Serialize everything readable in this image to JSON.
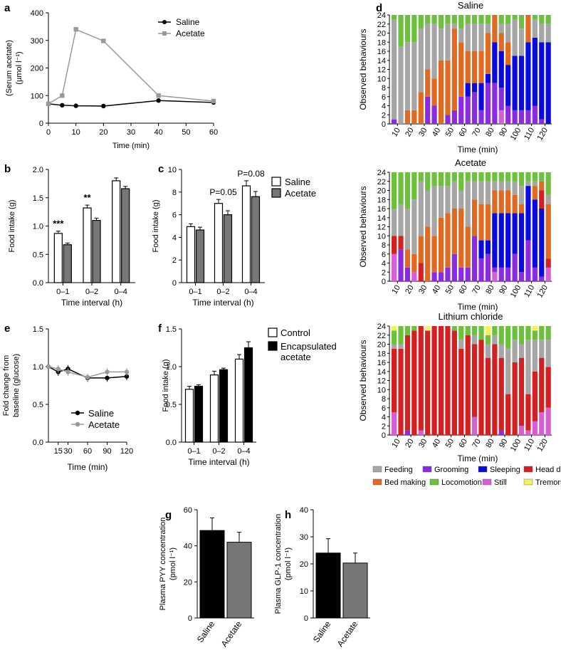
{
  "colors": {
    "saline": "#000000",
    "acetate_line": "#999999",
    "white_bar": "#ffffff",
    "acetate_bar": "#777777",
    "encapsulated_bar": "#000000",
    "feeding": "#a6a6a6",
    "grooming": "#8a2be2",
    "sleeping": "#0a0ae0",
    "head_down": "#d42020",
    "bed_making": "#e06a22",
    "locomotion": "#6cc03c",
    "still": "#d65fd6",
    "tremors": "#f2f25a"
  },
  "behaviour_legend": [
    {
      "key": "feeding",
      "label": "Feeding"
    },
    {
      "key": "grooming",
      "label": "Grooming"
    },
    {
      "key": "sleeping",
      "label": "Sleeping"
    },
    {
      "key": "head_down",
      "label": "Head down"
    },
    {
      "key": "bed_making",
      "label": "Bed making"
    },
    {
      "key": "locomotion",
      "label": "Locomotion"
    },
    {
      "key": "still",
      "label": "Still"
    },
    {
      "key": "tremors",
      "label": "Tremors"
    }
  ],
  "chart_data": [
    {
      "panel": "a",
      "type": "line",
      "xlabel": "Time (min)",
      "ylabel": [
        "(Serum acetate)",
        "(µmol l⁻¹)"
      ],
      "xlim": [
        0,
        60
      ],
      "xticks": [
        0,
        10,
        20,
        30,
        40,
        50,
        60
      ],
      "ylim": [
        0,
        400
      ],
      "yticks": [
        0,
        100,
        200,
        300,
        400
      ],
      "legend": "top-right",
      "series": [
        {
          "name": "Saline",
          "color": "#000000",
          "marker": "circle",
          "x": [
            0,
            5,
            10,
            20,
            40,
            60
          ],
          "y": [
            70,
            65,
            63,
            62,
            82,
            75
          ]
        },
        {
          "name": "Acetate",
          "color": "#999999",
          "marker": "square",
          "x": [
            0,
            5,
            10,
            20,
            40,
            60
          ],
          "y": [
            70,
            100,
            340,
            298,
            100,
            80
          ]
        }
      ]
    },
    {
      "panel": "b",
      "type": "bar",
      "xlabel": "Time interval (h)",
      "ylabel": "Food intake (g)",
      "ylim": [
        0,
        2.0
      ],
      "yticks": [
        "0.0",
        "0.5",
        "1.0",
        "1.5",
        "2.0"
      ],
      "categories": [
        "0–1",
        "0–2",
        "0–4"
      ],
      "annotations": [
        "***",
        "**",
        ""
      ],
      "series": [
        {
          "name": "Saline",
          "fill": "#ffffff",
          "values": [
            0.87,
            1.32,
            1.8
          ],
          "errors": [
            0.04,
            0.05,
            0.05
          ]
        },
        {
          "name": "Acetate",
          "fill": "#777777",
          "values": [
            0.67,
            1.1,
            1.66
          ],
          "errors": [
            0.03,
            0.04,
            0.04
          ]
        }
      ]
    },
    {
      "panel": "c",
      "type": "bar",
      "xlabel": "Time interval (h)",
      "ylabel": "Food intake (g)",
      "ylim": [
        0,
        10
      ],
      "yticks": [
        "0",
        "2",
        "4",
        "6",
        "8",
        "10"
      ],
      "categories": [
        "0–1",
        "0–2",
        "0–4"
      ],
      "annotations": [
        "",
        "P=0.05",
        "P=0.08"
      ],
      "legend": "top-right",
      "series": [
        {
          "name": "Saline",
          "fill": "#ffffff",
          "values": [
            4.95,
            7.0,
            8.55
          ],
          "errors": [
            0.25,
            0.35,
            0.45
          ]
        },
        {
          "name": "Acetate",
          "fill": "#777777",
          "values": [
            4.65,
            6.0,
            7.6
          ],
          "errors": [
            0.25,
            0.35,
            0.45
          ]
        }
      ]
    },
    {
      "panel": "e",
      "type": "line",
      "xlabel": "Time (min)",
      "ylabel": [
        "Fold change from",
        "baseline (glucose)"
      ],
      "xcategories": [
        "15",
        "30",
        "60",
        "90",
        "120"
      ],
      "ylim": [
        0,
        1.5
      ],
      "yticks": [
        "0.0",
        "0.5",
        "1.0",
        "1.5"
      ],
      "legend": "bottom-center",
      "series": [
        {
          "name": "Saline",
          "color": "#000000",
          "x": [
            0,
            15,
            30,
            60,
            90,
            120
          ],
          "y": [
            1.0,
            0.93,
            0.97,
            0.85,
            0.85,
            0.87
          ],
          "errors": [
            0,
            0.05,
            0.05,
            0.05,
            0.05,
            0.05
          ]
        },
        {
          "name": "Acetate",
          "color": "#999999",
          "x": [
            0,
            15,
            30,
            60,
            90,
            120
          ],
          "y": [
            1.0,
            0.97,
            0.93,
            0.86,
            0.93,
            0.93
          ],
          "errors": [
            0,
            0.05,
            0.05,
            0.05,
            0.05,
            0.05
          ]
        }
      ]
    },
    {
      "panel": "f",
      "type": "bar",
      "xlabel": "Time interval (h)",
      "ylabel": "Food intake (g)",
      "ylim": [
        0,
        1.5
      ],
      "yticks": [
        "0.0",
        "0.5",
        "1.0",
        "1.5"
      ],
      "categories": [
        "0–1",
        "0–2",
        "0–4"
      ],
      "legend": "top-right",
      "series": [
        {
          "name": "Control",
          "fill": "#ffffff",
          "values": [
            0.7,
            0.89,
            1.1
          ],
          "errors": [
            0.04,
            0.05,
            0.06
          ]
        },
        {
          "name": "Encapsulated acetate",
          "legend_lines": [
            "Encapsulated",
            "acetate"
          ],
          "fill": "#000000",
          "values": [
            0.74,
            0.96,
            1.25
          ],
          "errors": [
            0.02,
            0.02,
            0.08
          ]
        }
      ]
    },
    {
      "panel": "g",
      "type": "bar",
      "ylabel": [
        "Plasma PYY concentration",
        "(pmol l⁻¹)"
      ],
      "ylim": [
        0,
        60
      ],
      "yticks": [
        "0",
        "20",
        "40",
        "60"
      ],
      "categories": [
        "Saline",
        "Acetate"
      ],
      "fills": [
        "#000000",
        "#777777"
      ],
      "values": [
        48.5,
        42.0
      ],
      "errors": [
        7.0,
        5.5
      ]
    },
    {
      "panel": "h",
      "type": "bar",
      "ylabel": [
        "Plasma GLP-1 concentration",
        "(pmol l⁻¹)"
      ],
      "ylim": [
        0,
        40
      ],
      "yticks": [
        "0",
        "10",
        "20",
        "30",
        "40"
      ],
      "categories": [
        "Saline",
        "Acetate"
      ],
      "fills": [
        "#000000",
        "#777777"
      ],
      "values": [
        24.0,
        20.3
      ],
      "errors": [
        5.3,
        3.7
      ]
    },
    {
      "panel": "d",
      "type": "stacked-bar",
      "titles": [
        "Saline",
        "Acetate",
        "Lithium chloride"
      ],
      "xlabel": "Time (min)",
      "ylabel": "Observed behaviours",
      "ylim": [
        0,
        24
      ],
      "yticks": [
        "0",
        "2",
        "4",
        "6",
        "8",
        "10",
        "12",
        "14",
        "16",
        "18",
        "20",
        "22",
        "24"
      ],
      "xticks": [
        "10",
        "20",
        "30",
        "40",
        "50",
        "60",
        "70",
        "80",
        "90",
        "100",
        "110",
        "120"
      ],
      "n_bars": 24,
      "stack_order": [
        "still",
        "grooming",
        "sleeping",
        "head_down",
        "bed_making",
        "feeding",
        "locomotion",
        "tremors"
      ],
      "groups": [
        {
          "title": "Saline",
          "bars": [
            {
              "grooming": 1,
              "feeding": 22,
              "locomotion": 1
            },
            {
              "feeding": 17,
              "locomotion": 7
            },
            {
              "bed_making": 3,
              "feeding": 15,
              "locomotion": 6
            },
            {
              "bed_making": 3,
              "feeding": 15,
              "locomotion": 6
            },
            {
              "bed_making": 7,
              "feeding": 14,
              "locomotion": 3
            },
            {
              "grooming": 6,
              "bed_making": 6,
              "feeding": 10,
              "locomotion": 2
            },
            {
              "grooming": 4,
              "bed_making": 6,
              "feeding": 12,
              "locomotion": 2
            },
            {
              "bed_making": 14,
              "feeding": 7,
              "locomotion": 3
            },
            {
              "grooming": 2,
              "bed_making": 12,
              "feeding": 8,
              "locomotion": 2
            },
            {
              "grooming": 3,
              "bed_making": 18,
              "feeding": 1,
              "locomotion": 2
            },
            {
              "grooming": 6,
              "bed_making": 12,
              "feeding": 3,
              "locomotion": 3
            },
            {
              "grooming": 6,
              "sleeping": 3,
              "bed_making": 7,
              "feeding": 6,
              "locomotion": 2
            },
            {
              "grooming": 7,
              "sleeping": 2,
              "bed_making": 7,
              "feeding": 6,
              "locomotion": 2
            },
            {
              "grooming": 3,
              "sleeping": 6,
              "bed_making": 7,
              "feeding": 6,
              "locomotion": 2
            },
            {
              "grooming": 9,
              "sleeping": 2,
              "bed_making": 9,
              "feeding": 2,
              "locomotion": 2
            },
            {
              "grooming": 9,
              "sleeping": 9,
              "bed_making": 6
            },
            {
              "still": 3,
              "grooming": 5,
              "sleeping": 8,
              "bed_making": 4,
              "feeding": 2,
              "locomotion": 2
            },
            {
              "grooming": 4,
              "sleeping": 9,
              "bed_making": 5,
              "feeding": 4,
              "locomotion": 2
            },
            {
              "grooming": 3,
              "sleeping": 12,
              "feeding": 8,
              "locomotion": 1
            },
            {
              "grooming": 3,
              "sleeping": 12,
              "feeding": 6,
              "locomotion": 3
            },
            {
              "grooming": 3,
              "sleeping": 15,
              "bed_making": 6
            },
            {
              "grooming": 4,
              "sleeping": 15,
              "feeding": 4,
              "locomotion": 1
            },
            {
              "grooming": 1,
              "sleeping": 17,
              "feeding": 4,
              "locomotion": 2
            },
            {
              "sleeping": 18,
              "feeding": 4,
              "locomotion": 2
            }
          ]
        },
        {
          "title": "Acetate",
          "bars": [
            {
              "still": 6,
              "head_down": 4,
              "feeding": 6,
              "locomotion": 8
            },
            {
              "grooming": 7,
              "head_down": 3,
              "feeding": 7,
              "locomotion": 7
            },
            {
              "grooming": 3,
              "bed_making": 4,
              "feeding": 9,
              "locomotion": 8
            },
            {
              "still": 2,
              "bed_making": 4,
              "feeding": 12,
              "locomotion": 6
            },
            {
              "head_down": 4,
              "bed_making": 6,
              "feeding": 12,
              "locomotion": 2
            },
            {
              "bed_making": 12,
              "feeding": 8,
              "locomotion": 4
            },
            {
              "grooming": 2,
              "bed_making": 8,
              "feeding": 11,
              "locomotion": 3
            },
            {
              "grooming": 2,
              "bed_making": 12,
              "feeding": 7,
              "locomotion": 3
            },
            {
              "grooming": 3,
              "bed_making": 12,
              "feeding": 6,
              "locomotion": 3
            },
            {
              "grooming": 6,
              "bed_making": 10,
              "feeding": 6,
              "locomotion": 2
            },
            {
              "grooming": 3,
              "bed_making": 13,
              "feeding": 4,
              "locomotion": 4
            },
            {
              "grooming": 3,
              "bed_making": 9,
              "feeding": 10,
              "locomotion": 2
            },
            {
              "grooming": 10,
              "bed_making": 8,
              "feeding": 4,
              "locomotion": 2
            },
            {
              "grooming": 5,
              "sleeping": 4,
              "bed_making": 8,
              "feeding": 5,
              "locomotion": 2
            },
            {
              "grooming": 6,
              "sleeping": 3,
              "bed_making": 8,
              "feeding": 5,
              "locomotion": 2
            },
            {
              "still": 2,
              "grooming": 1,
              "sleeping": 12,
              "bed_making": 5,
              "feeding": 2,
              "locomotion": 2
            },
            {
              "grooming": 3,
              "sleeping": 12,
              "bed_making": 5,
              "feeding": 2,
              "locomotion": 2
            },
            {
              "grooming": 3,
              "sleeping": 12,
              "bed_making": 5,
              "feeding": 2,
              "locomotion": 2
            },
            {
              "grooming": 6,
              "sleeping": 9,
              "bed_making": 4,
              "feeding": 3,
              "locomotion": 2
            },
            {
              "grooming": 2,
              "sleeping": 13,
              "bed_making": 2,
              "feeding": 4,
              "locomotion": 3
            },
            {
              "grooming": 9,
              "sleeping": 12,
              "feeding": 1,
              "locomotion": 2
            },
            {
              "grooming": 3,
              "sleeping": 15,
              "bed_making": 3,
              "feeding": 1,
              "locomotion": 2
            },
            {
              "grooming": 1,
              "sleeping": 15,
              "head_down": 4,
              "bed_making": 2,
              "locomotion": 2
            },
            {
              "still": 3,
              "head_down": 2,
              "bed_making": 12,
              "feeding": 2,
              "locomotion": 5
            }
          ]
        },
        {
          "title": "Lithium chloride",
          "bars": [
            {
              "still": 5,
              "tremors": 1,
              "head_down": 14,
              "feeding": 1,
              "locomotion": 3
            },
            {
              "head_down": 19,
              "feeding": 1,
              "locomotion": 4
            },
            {
              "grooming": 1,
              "head_down": 21,
              "locomotion": 2
            },
            {
              "head_down": 23,
              "locomotion": 1
            },
            {
              "still": 1,
              "head_down": 23
            },
            {
              "tremors": 1,
              "head_down": 23
            },
            {
              "head_down": 24
            },
            {
              "head_down": 24
            },
            {
              "head_down": 24
            },
            {
              "head_down": 23,
              "locomotion": 1
            },
            {
              "head_down": 19,
              "feeding": 2,
              "locomotion": 3
            },
            {
              "head_down": 22,
              "locomotion": 2
            },
            {
              "still": 4,
              "head_down": 16,
              "feeding": 2,
              "locomotion": 2
            },
            {
              "head_down": 21,
              "locomotion": 3
            },
            {
              "tremors": 2,
              "head_down": 17,
              "feeding": 3,
              "locomotion": 2
            },
            {
              "head_down": 20,
              "feeding": 2,
              "locomotion": 2
            },
            {
              "grooming": 1,
              "head_down": 16,
              "feeding": 3,
              "locomotion": 4
            },
            {
              "head_down": 9,
              "feeding": 10,
              "locomotion": 5
            },
            {
              "head_down": 16,
              "feeding": 5,
              "locomotion": 3
            },
            {
              "still": 2,
              "head_down": 15,
              "feeding": 3,
              "locomotion": 4
            },
            {
              "still": 1,
              "head_down": 8,
              "feeding": 12,
              "locomotion": 3
            },
            {
              "still": 3,
              "tremors": 1,
              "head_down": 11,
              "feeding": 7,
              "locomotion": 2
            },
            {
              "still": 5,
              "head_down": 12,
              "feeding": 4,
              "locomotion": 3
            },
            {
              "still": 6,
              "head_down": 9,
              "feeding": 6,
              "locomotion": 3
            }
          ]
        }
      ]
    }
  ]
}
